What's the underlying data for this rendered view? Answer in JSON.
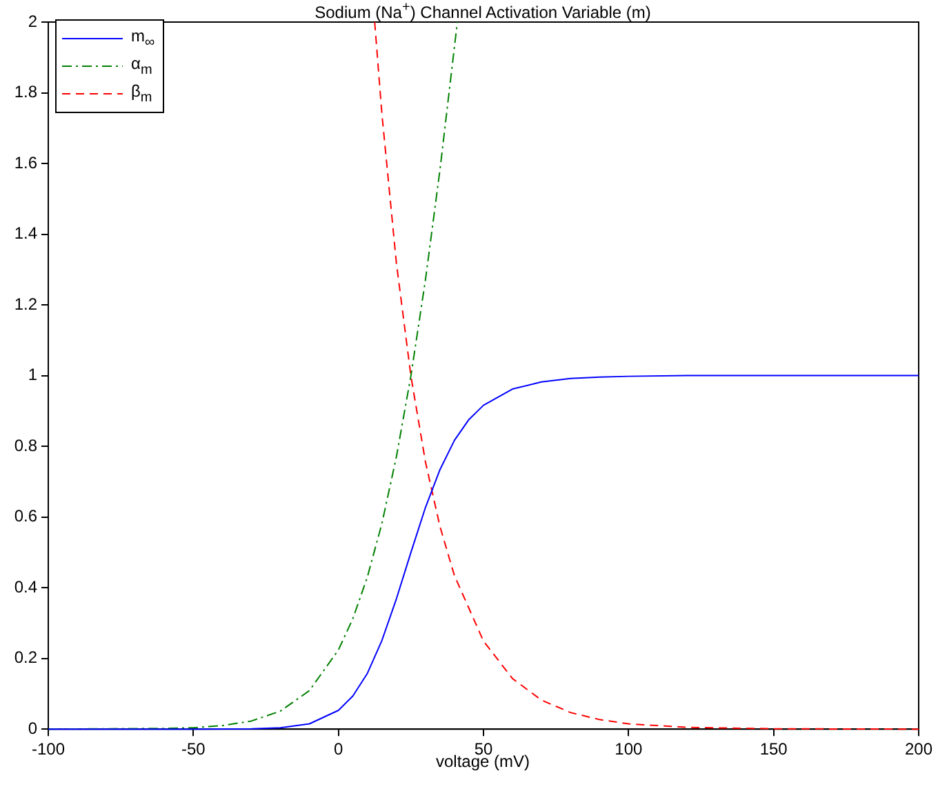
{
  "chart_data": {
    "type": "line",
    "title": "Sodium (Na$^{+}$) Channel Activation Variable (m)",
    "xlabel": "voltage (mV)",
    "xlim": [
      -100,
      200
    ],
    "xticks": [
      -100,
      -50,
      0,
      50,
      100,
      150,
      200
    ],
    "ylim": [
      0,
      2
    ],
    "yticks": [
      0,
      0.2,
      0.4,
      0.6,
      0.8,
      1,
      1.2,
      1.4,
      1.6,
      1.8,
      2
    ],
    "grid": false,
    "legend": "top left",
    "marker": "none",
    "series": [
      {
        "name": "m$_{∞}$",
        "color": "#0000ff",
        "line_style": "solid",
        "x": [
          -100,
          -50,
          -30,
          -20,
          -10,
          0,
          5,
          10,
          15,
          20,
          25,
          30,
          35,
          40,
          45,
          50,
          60,
          70,
          80,
          90,
          100,
          120,
          150,
          200
        ],
        "values": [
          0,
          0,
          0.001,
          0.004,
          0.015,
          0.053,
          0.094,
          0.158,
          0.251,
          0.369,
          0.5,
          0.627,
          0.734,
          0.817,
          0.876,
          0.916,
          0.962,
          0.982,
          0.992,
          0.996,
          0.998,
          1,
          1,
          1
        ]
      },
      {
        "name": "α$_{m}$",
        "color": "#008000",
        "line_style": "dashdot",
        "x": [
          -100,
          -60,
          -50,
          -40,
          -30,
          -20,
          -10,
          0,
          5,
          10,
          15,
          20,
          25,
          30,
          35,
          40,
          41
        ],
        "values": [
          0,
          0.002,
          0.004,
          0.01,
          0.023,
          0.051,
          0.109,
          0.224,
          0.313,
          0.431,
          0.582,
          0.771,
          1,
          1.271,
          1.582,
          1.931,
          2
        ]
      },
      {
        "name": "β$_{m}$",
        "color": "#ff0000",
        "line_style": "dashed",
        "x": [
          12.5,
          15,
          20,
          25,
          30,
          35,
          40,
          50,
          60,
          70,
          80,
          90,
          100,
          120,
          150,
          200
        ],
        "values": [
          2,
          1.739,
          1.317,
          0.998,
          0.756,
          0.573,
          0.434,
          0.249,
          0.143,
          0.082,
          0.047,
          0.027,
          0.015,
          0.005,
          0.001,
          0
        ]
      }
    ]
  }
}
